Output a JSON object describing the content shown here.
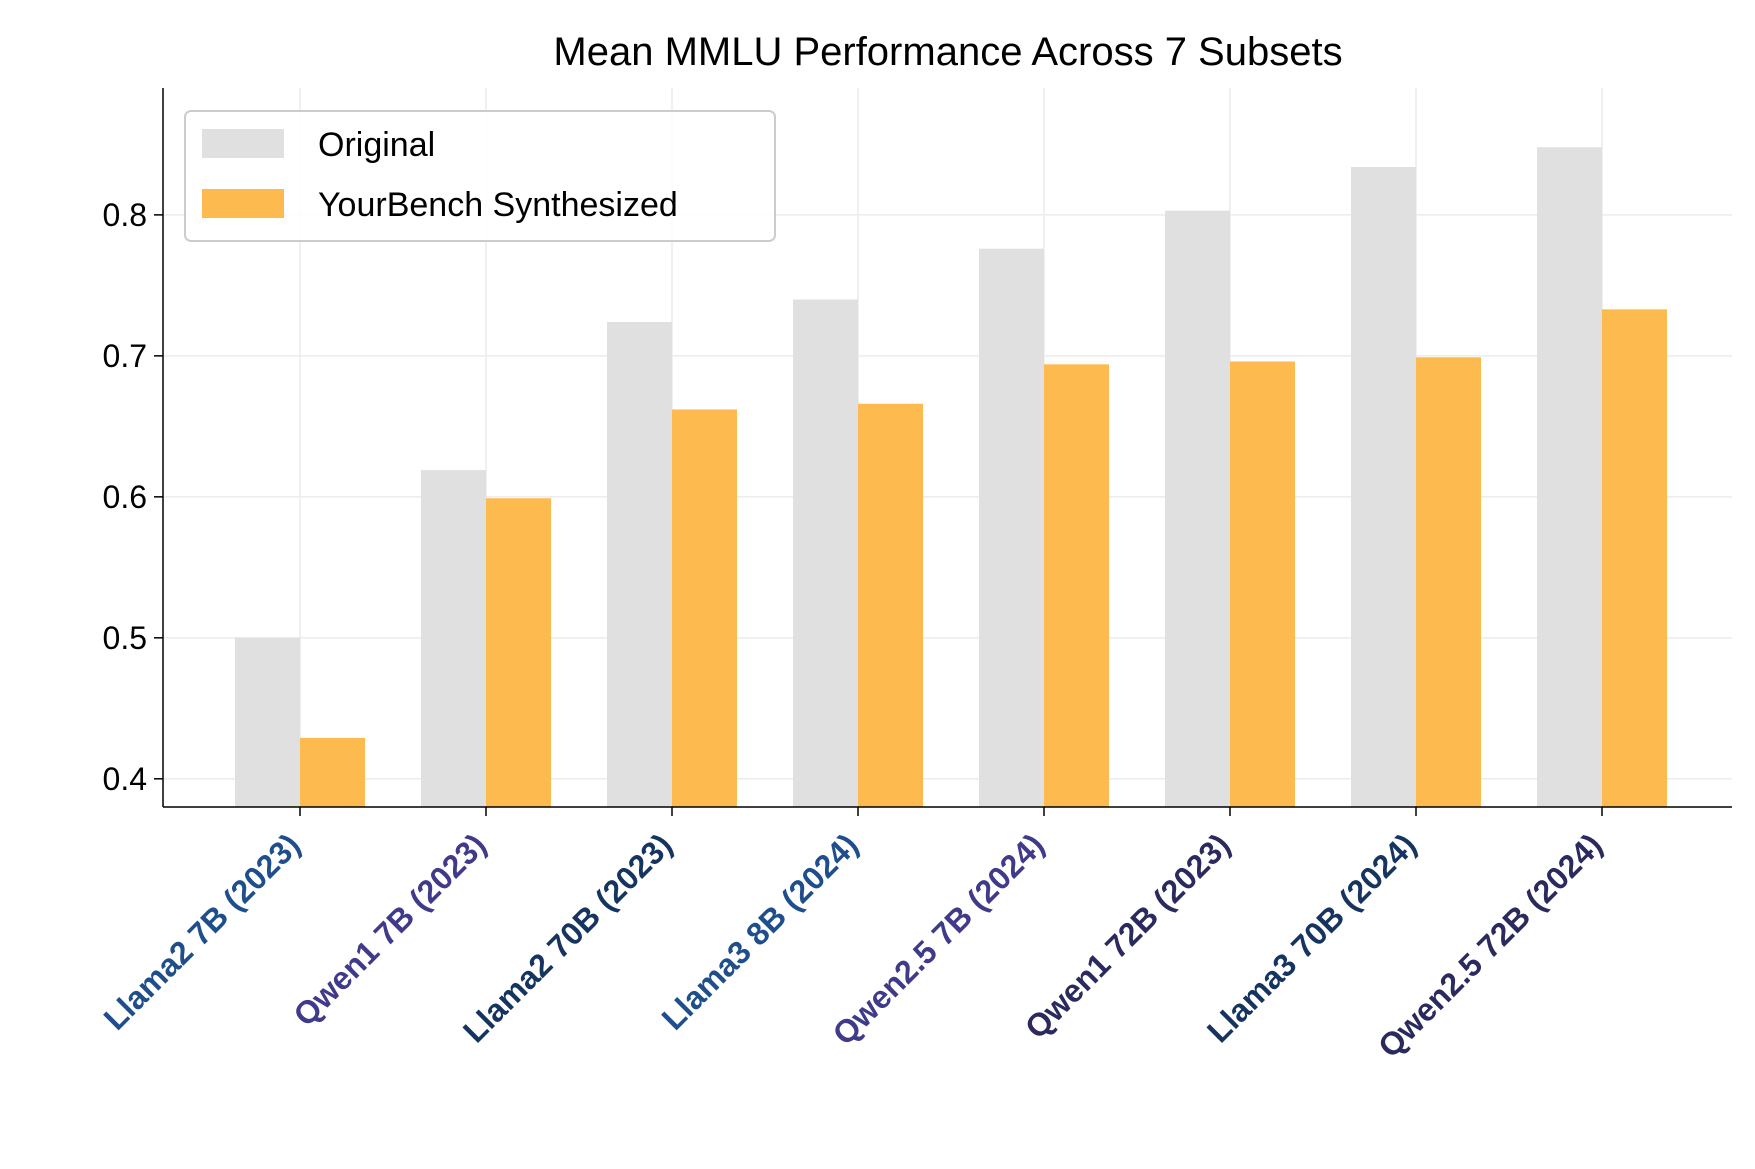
{
  "chart_data": {
    "type": "bar",
    "title": "Mean MMLU Performance Across 7 Subsets",
    "xlabel": "",
    "ylabel": "",
    "ylim": [
      0.38,
      0.89
    ],
    "yticks": [
      "0.4",
      "0.5",
      "0.6",
      "0.7",
      "0.8"
    ],
    "grid": true,
    "legend_position": "top-left",
    "categories": [
      "Llama2 7B (2023)",
      "Qwen1 7B (2023)",
      "Llama2 70B (2023)",
      "Llama3 8B (2024)",
      "Qwen2.5 7B (2024)",
      "Qwen1 72B (2023)",
      "Llama3 70B (2024)",
      "Qwen2.5 72B (2024)"
    ],
    "category_colors": [
      "#1f4e8c",
      "#3f3a8a",
      "#15345f",
      "#1f4e8c",
      "#3f3a8a",
      "#2b2a5e",
      "#15345f",
      "#2b2a5e"
    ],
    "series": [
      {
        "name": "Original",
        "color": "#e0e0e0",
        "values": [
          0.5,
          0.619,
          0.724,
          0.74,
          0.776,
          0.803,
          0.834,
          0.848
        ]
      },
      {
        "name": "YourBench Synthesized",
        "color": "#fdba4f",
        "values": [
          0.429,
          0.599,
          0.662,
          0.666,
          0.694,
          0.696,
          0.699,
          0.733
        ]
      }
    ]
  }
}
